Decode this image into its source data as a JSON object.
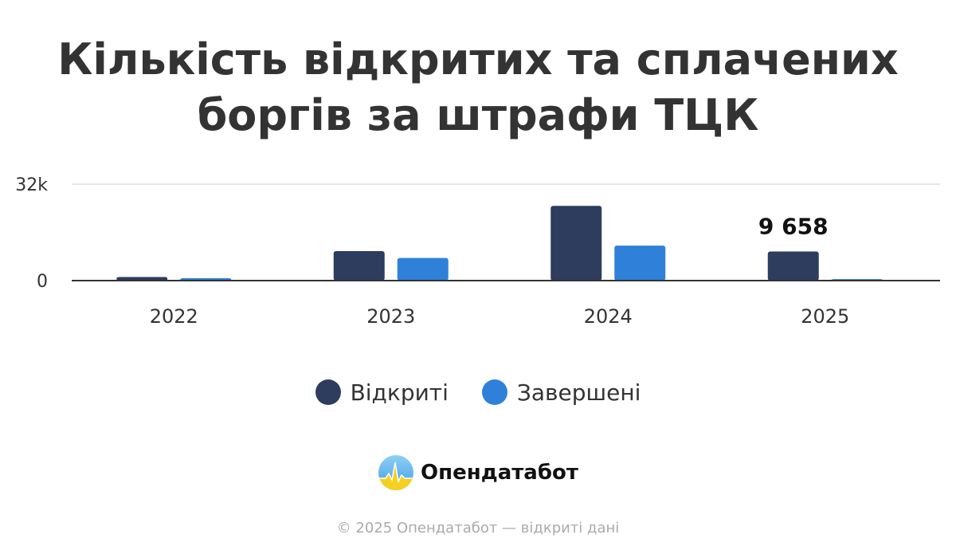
{
  "title_lines": [
    "Кількість відкритих та сплачених",
    "боргів за штрафи ТЦК"
  ],
  "colors": {
    "opened": "#2e3d5e",
    "completed": "#2f80d9",
    "grid": "#e6e6e6",
    "axis": "#333333"
  },
  "chart_data": {
    "type": "bar",
    "categories": [
      "2022",
      "2023",
      "2024",
      "2025"
    ],
    "series": [
      {
        "name": "Відкриті",
        "values": [
          1200,
          9800,
          24800,
          9658
        ]
      },
      {
        "name": "Завершені",
        "values": [
          800,
          7500,
          11600,
          500
        ]
      }
    ],
    "ylim": [
      0,
      32000
    ],
    "y_ticks": [
      {
        "value": 0,
        "label": "0"
      },
      {
        "value": 32000,
        "label": "32k"
      }
    ],
    "annotations": [
      {
        "category": "2025",
        "series": "Відкриті",
        "text": "9 658"
      }
    ],
    "grid": true,
    "legend": "bottom-center"
  },
  "logo": {
    "name": "Опендатабот"
  },
  "footer": "© 2025 Опендатабот — відкриті дані"
}
